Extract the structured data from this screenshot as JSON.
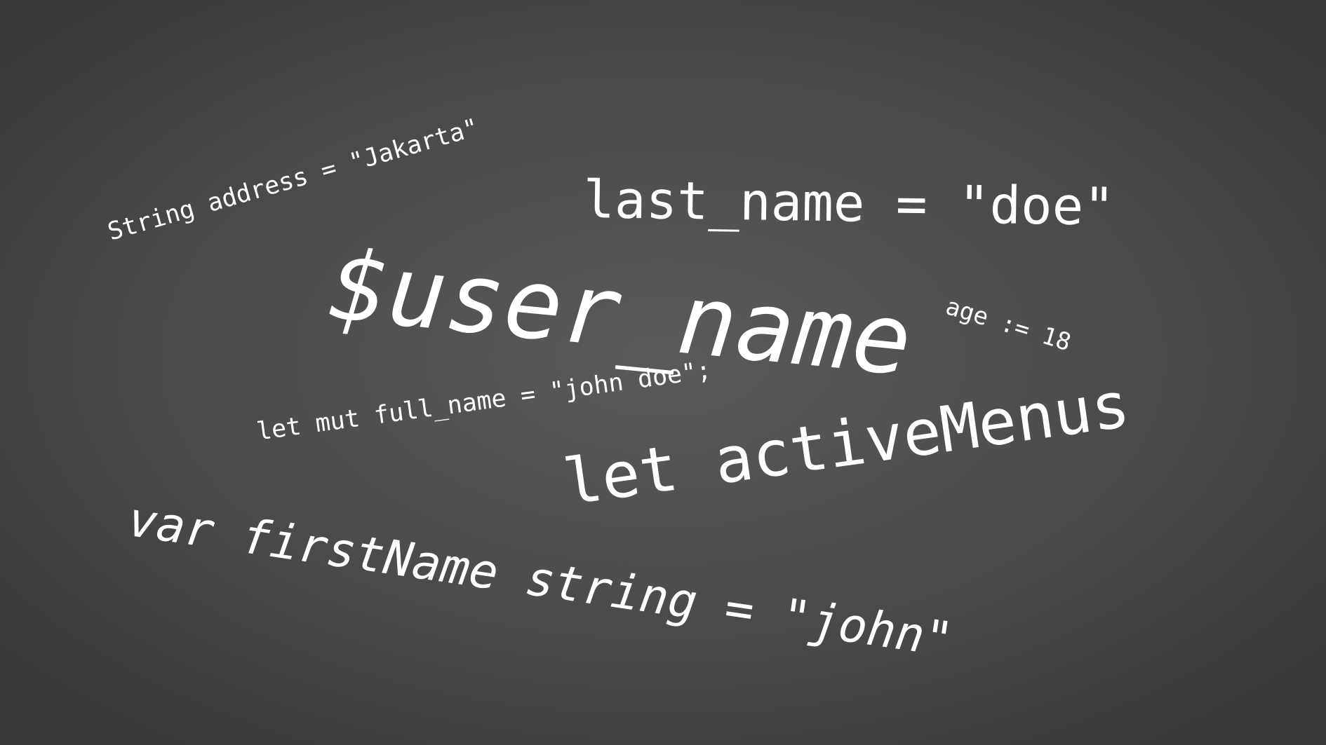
{
  "snippets": {
    "address": "String address = \"Jakarta\"",
    "last_name": "last_name = \"doe\"",
    "user_name": "$user_name",
    "age": "age := 18",
    "full_name": "let mut full_name = \"john doe\";",
    "active_menus": "let activeMenus",
    "first_name": "var firstName string = \"john\""
  },
  "colors": {
    "text": "#ffffff",
    "background_center": "#5a5a5a",
    "background_edge": "#363636"
  }
}
